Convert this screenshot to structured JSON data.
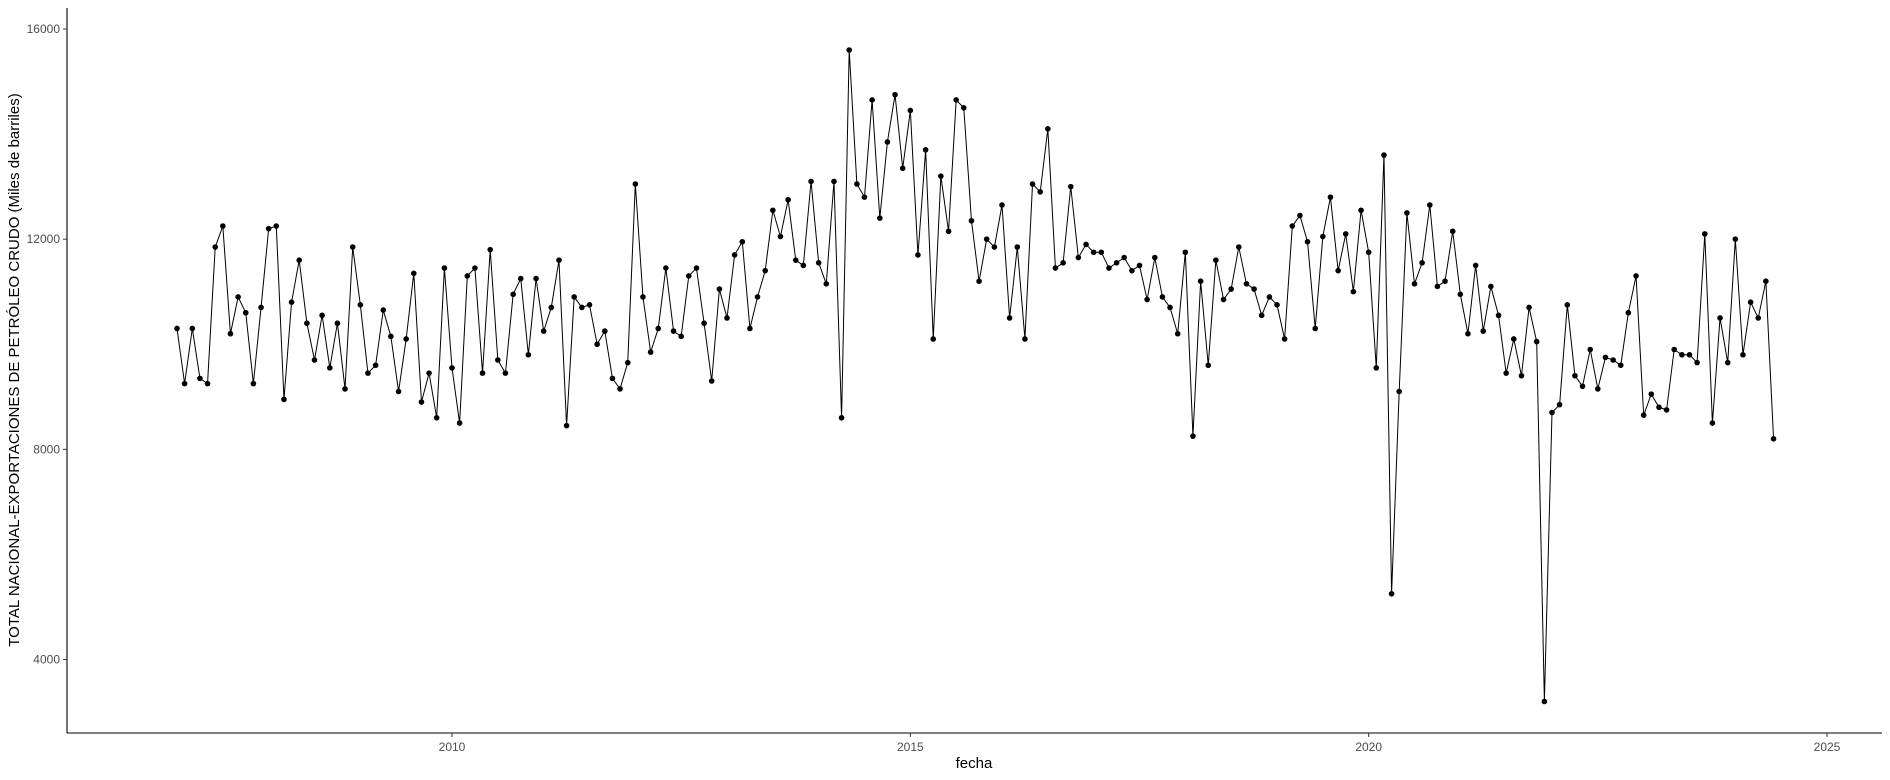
{
  "chart_data": {
    "type": "line",
    "title": "",
    "xlabel": "fecha",
    "ylabel": "TOTAL NACIONAL-EXPORTACIONES DE PETRÓLEO CRUDO (Miles de barriles)",
    "xlim": [
      2005.8,
      2025.6
    ],
    "ylim": [
      2600,
      16400
    ],
    "x_ticks": [
      2010,
      2015,
      2020,
      2025
    ],
    "y_ticks": [
      4000,
      8000,
      12000,
      16000
    ],
    "grid": false,
    "markers": true,
    "line_color": "#000000",
    "series": [
      {
        "x": [
          2007.0,
          2007.083,
          2007.167,
          2007.25,
          2007.333,
          2007.417,
          2007.5,
          2007.583,
          2007.667,
          2007.75,
          2007.833,
          2007.917,
          2008.0,
          2008.083,
          2008.167,
          2008.25,
          2008.333,
          2008.417,
          2008.5,
          2008.583,
          2008.667,
          2008.75,
          2008.833,
          2008.917,
          2009.0,
          2009.083,
          2009.167,
          2009.25,
          2009.333,
          2009.417,
          2009.5,
          2009.583,
          2009.667,
          2009.75,
          2009.833,
          2009.917,
          2010.0,
          2010.083,
          2010.167,
          2010.25,
          2010.333,
          2010.417,
          2010.5,
          2010.583,
          2010.667,
          2010.75,
          2010.833,
          2010.917,
          2011.0,
          2011.083,
          2011.167,
          2011.25,
          2011.333,
          2011.417,
          2011.5,
          2011.583,
          2011.667,
          2011.75,
          2011.833,
          2011.917,
          2012.0,
          2012.083,
          2012.167,
          2012.25,
          2012.333,
          2012.417,
          2012.5,
          2012.583,
          2012.667,
          2012.75,
          2012.833,
          2012.917,
          2013.0,
          2013.083,
          2013.167,
          2013.25,
          2013.333,
          2013.417,
          2013.5,
          2013.583,
          2013.667,
          2013.75,
          2013.833,
          2013.917,
          2014.0,
          2014.083,
          2014.167,
          2014.25,
          2014.333,
          2014.417,
          2014.5,
          2014.583,
          2014.667,
          2014.75,
          2014.833,
          2014.917,
          2015.0,
          2015.083,
          2015.167,
          2015.25,
          2015.333,
          2015.417,
          2015.5,
          2015.583,
          2015.667,
          2015.75,
          2015.833,
          2015.917,
          2016.0,
          2016.083,
          2016.167,
          2016.25,
          2016.333,
          2016.417,
          2016.5,
          2016.583,
          2016.667,
          2016.75,
          2016.833,
          2016.917,
          2017.0,
          2017.083,
          2017.167,
          2017.25,
          2017.333,
          2017.417,
          2017.5,
          2017.583,
          2017.667,
          2017.75,
          2017.833,
          2017.917,
          2018.0,
          2018.083,
          2018.167,
          2018.25,
          2018.333,
          2018.417,
          2018.5,
          2018.583,
          2018.667,
          2018.75,
          2018.833,
          2018.917,
          2019.0,
          2019.083,
          2019.167,
          2019.25,
          2019.333,
          2019.417,
          2019.5,
          2019.583,
          2019.667,
          2019.75,
          2019.833,
          2019.917,
          2020.0,
          2020.083,
          2020.167,
          2020.25,
          2020.333,
          2020.417,
          2020.5,
          2020.583,
          2020.667,
          2020.75,
          2020.833,
          2020.917,
          2021.0,
          2021.083,
          2021.167,
          2021.25,
          2021.333,
          2021.417,
          2021.5,
          2021.583,
          2021.667,
          2021.75,
          2021.833,
          2021.917,
          2022.0,
          2022.083,
          2022.167,
          2022.25,
          2022.333,
          2022.417,
          2022.5,
          2022.583,
          2022.667,
          2022.75,
          2022.833,
          2022.917,
          2023.0,
          2023.083,
          2023.167,
          2023.25,
          2023.333,
          2023.417,
          2023.5,
          2023.583,
          2023.667,
          2023.75,
          2023.833,
          2023.917,
          2024.0,
          2024.083,
          2024.167,
          2024.25,
          2024.333,
          2024.417
        ],
        "y": [
          10300,
          9250,
          10300,
          9350,
          9250,
          11850,
          12250,
          10200,
          10900,
          10600,
          9250,
          10700,
          12200,
          12250,
          8950,
          10800,
          11600,
          10400,
          9700,
          10550,
          9550,
          10400,
          9150,
          11850,
          10750,
          9450,
          9600,
          10650,
          10150,
          9100,
          10100,
          11350,
          8900,
          9450,
          8600,
          11450,
          9550,
          8500,
          11300,
          11450,
          9450,
          11800,
          9700,
          9450,
          10950,
          11250,
          9800,
          11250,
          10250,
          10700,
          11600,
          8450,
          10900,
          10700,
          10750,
          10000,
          10250,
          9350,
          9150,
          9650,
          13050,
          10900,
          9850,
          10300,
          11450,
          10250,
          10150,
          11300,
          11450,
          10400,
          9300,
          11050,
          10500,
          11700,
          11950,
          10300,
          10900,
          11400,
          12550,
          12050,
          12750,
          11600,
          11500,
          13100,
          11550,
          11150,
          13100,
          8600,
          15600,
          13050,
          12800,
          14650,
          12400,
          13850,
          14750,
          13350,
          14450,
          11700,
          13700,
          10100,
          13200,
          12150,
          14650,
          14500,
          12350,
          11200,
          12000,
          11850,
          12650,
          10500,
          11850,
          10100,
          13050,
          12900,
          14100,
          11450,
          11550,
          13000,
          11650,
          11900,
          11750,
          11750,
          11450,
          11550,
          11650,
          11400,
          11500,
          10850,
          11650,
          10900,
          10700,
          10200,
          11750,
          8250,
          11200,
          9600,
          11600,
          10850,
          11050,
          11850,
          11150,
          11050,
          10550,
          10900,
          10750,
          10100,
          12250,
          12450,
          11950,
          10300,
          12050,
          12800,
          11400,
          12100,
          11000,
          12550,
          11750,
          9550,
          13600,
          5250,
          9100,
          12500,
          11150,
          11550,
          12650,
          11100,
          11200,
          12150,
          10950,
          10200,
          11500,
          10250,
          11100,
          10550,
          9450,
          10100,
          9400,
          10700,
          10050,
          3200,
          8700,
          8850,
          10750,
          9400,
          9200,
          9900,
          9150,
          9750,
          9700,
          9600,
          10600,
          11300,
          8650,
          9050,
          8800,
          8750,
          9900,
          9800,
          9800,
          9650,
          12100,
          8500,
          10500,
          9650,
          12000,
          9800,
          10800,
          10500,
          11200,
          8200
        ]
      }
    ]
  }
}
